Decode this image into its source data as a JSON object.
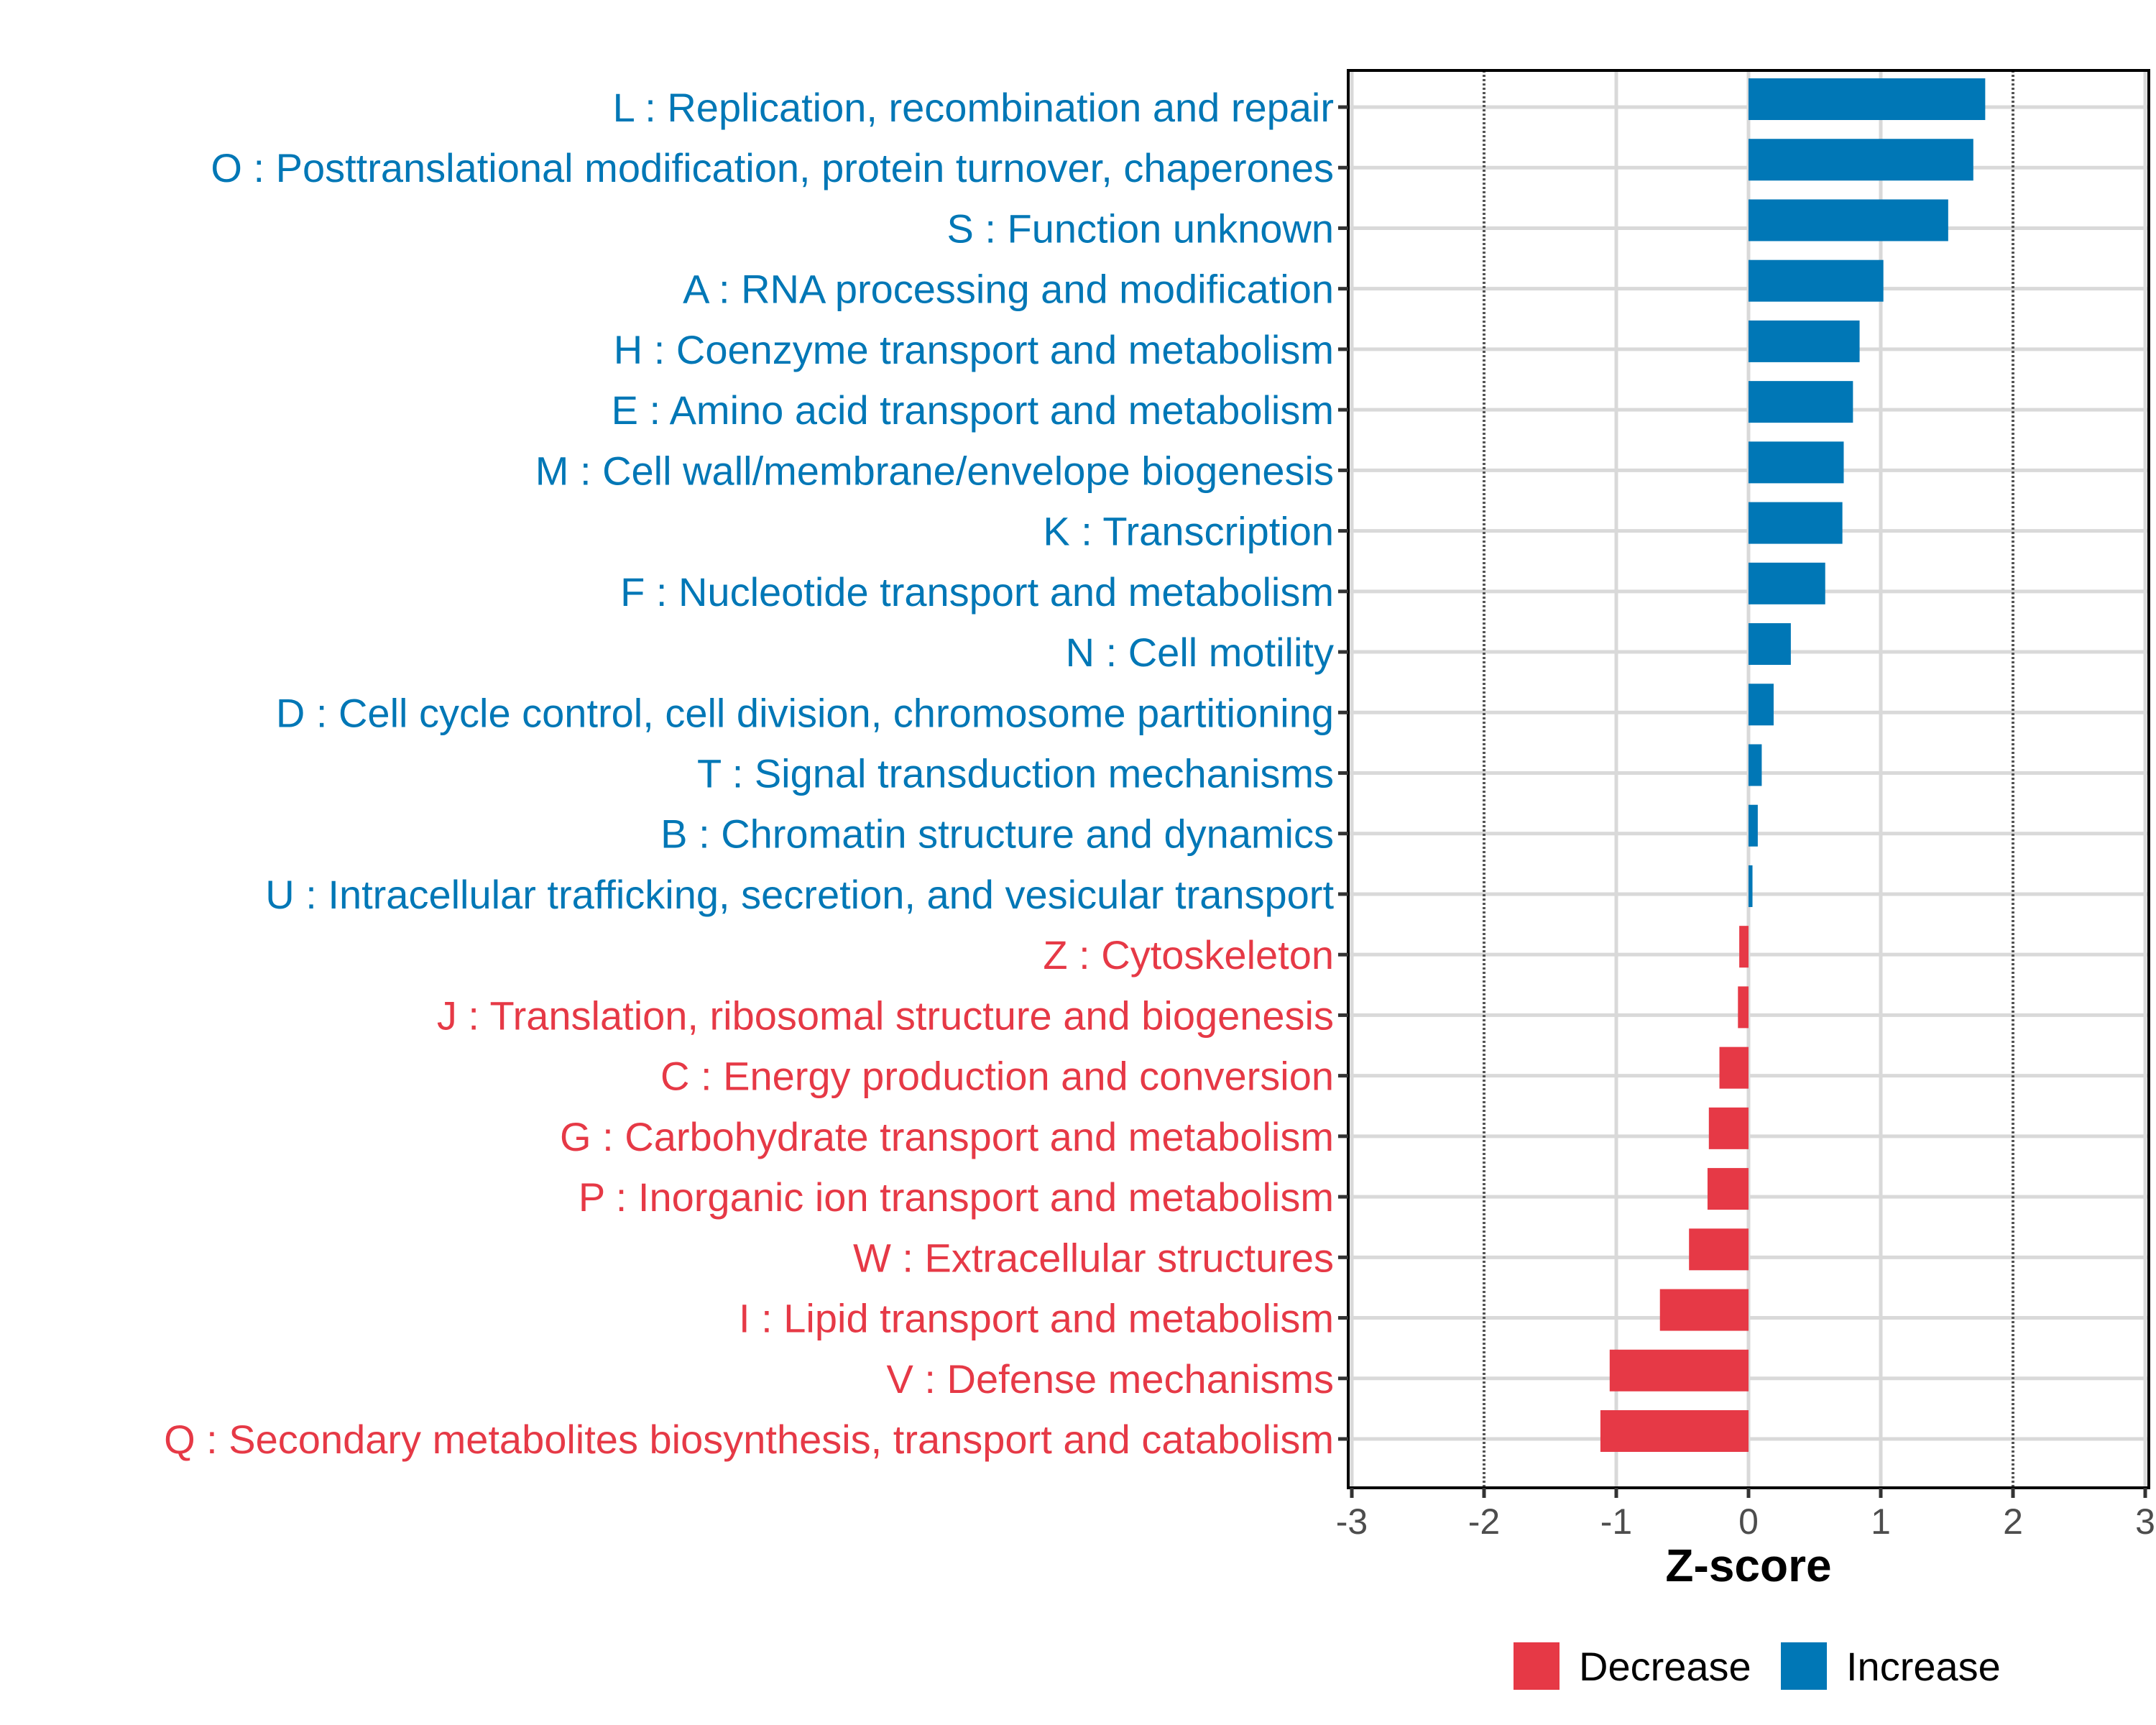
{
  "chart_data": {
    "type": "bar",
    "orientation": "horizontal",
    "title": "",
    "xlabel": "Z-score",
    "ylabel": "",
    "xlim": [
      -3,
      3
    ],
    "x_ticks": [
      "-3",
      "-2",
      "-1",
      "0",
      "1",
      "2",
      "3"
    ],
    "grid": true,
    "reference_lines": [
      -2,
      2
    ],
    "categories": [
      "L : Replication, recombination and repair",
      "O : Posttranslational modification, protein turnover, chaperones",
      "S : Function unknown",
      "A : RNA processing and modification",
      "H : Coenzyme transport and metabolism",
      "E : Amino acid transport and metabolism",
      "M : Cell wall/membrane/envelope biogenesis",
      "K : Transcription",
      "F : Nucleotide transport and metabolism",
      "N : Cell motility",
      "D : Cell cycle control, cell division, chromosome partitioning",
      "T : Signal transduction mechanisms",
      "B : Chromatin structure and dynamics",
      "U : Intracellular trafficking, secretion, and vesicular transport",
      "Z : Cytoskeleton",
      "J : Translation, ribosomal structure and biogenesis",
      "C : Energy production and conversion",
      "G : Carbohydrate transport and metabolism",
      "P : Inorganic ion transport and metabolism",
      "W : Extracellular structures",
      "I : Lipid transport and metabolism",
      "V : Defense mechanisms",
      "Q : Secondary metabolites biosynthesis, transport and catabolism"
    ],
    "values": [
      1.79,
      1.7,
      1.51,
      1.02,
      0.84,
      0.79,
      0.72,
      0.71,
      0.58,
      0.32,
      0.19,
      0.1,
      0.07,
      0.03,
      -0.07,
      -0.08,
      -0.22,
      -0.3,
      -0.31,
      -0.45,
      -0.67,
      -1.05,
      -1.12
    ],
    "groups": [
      "Increase",
      "Increase",
      "Increase",
      "Increase",
      "Increase",
      "Increase",
      "Increase",
      "Increase",
      "Increase",
      "Increase",
      "Increase",
      "Increase",
      "Increase",
      "Increase",
      "Decrease",
      "Decrease",
      "Decrease",
      "Decrease",
      "Decrease",
      "Decrease",
      "Decrease",
      "Decrease",
      "Decrease"
    ],
    "legend": {
      "position": "bottom",
      "entries": [
        {
          "label": "Decrease",
          "color": "#E63946"
        },
        {
          "label": "Increase",
          "color": "#0077B6"
        }
      ]
    },
    "colors": {
      "Increase": "#0077B6",
      "Decrease": "#E63946"
    }
  }
}
